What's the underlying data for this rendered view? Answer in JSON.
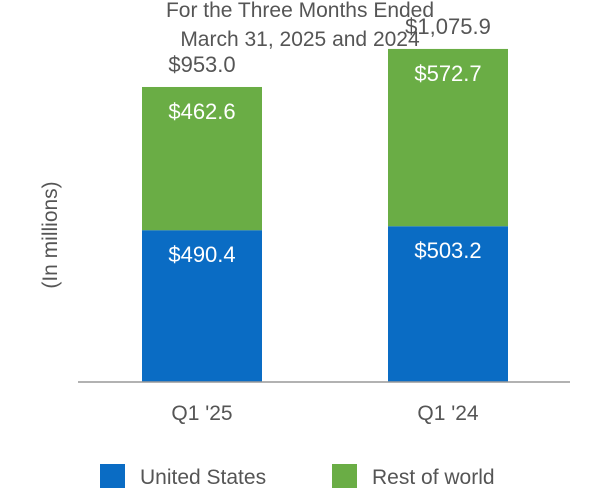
{
  "chart_data": {
    "type": "bar",
    "stacked": true,
    "title": [
      "For the Three Months Ended",
      "March 31, 2025 and 2024"
    ],
    "xlabel": "",
    "ylabel": "(In millions)",
    "categories": [
      "Q1 '25",
      "Q1 '24"
    ],
    "series": [
      {
        "name": "United States",
        "color": "#0a6cc4",
        "values": [
          490.4,
          503.2
        ],
        "labels": [
          "$490.4",
          "$503.2"
        ]
      },
      {
        "name": "Rest of world",
        "color": "#6aad45",
        "values": [
          462.6,
          572.7
        ],
        "labels": [
          "$462.6",
          "$572.7"
        ]
      }
    ],
    "totals": [
      953.0,
      1075.9
    ],
    "total_labels": [
      "$953.0",
      "$1,075.9"
    ],
    "ylim": [
      0,
      1150
    ],
    "grid": false,
    "legend_position": "bottom"
  },
  "colors": {
    "axis": "#999999",
    "text": "#555555"
  }
}
